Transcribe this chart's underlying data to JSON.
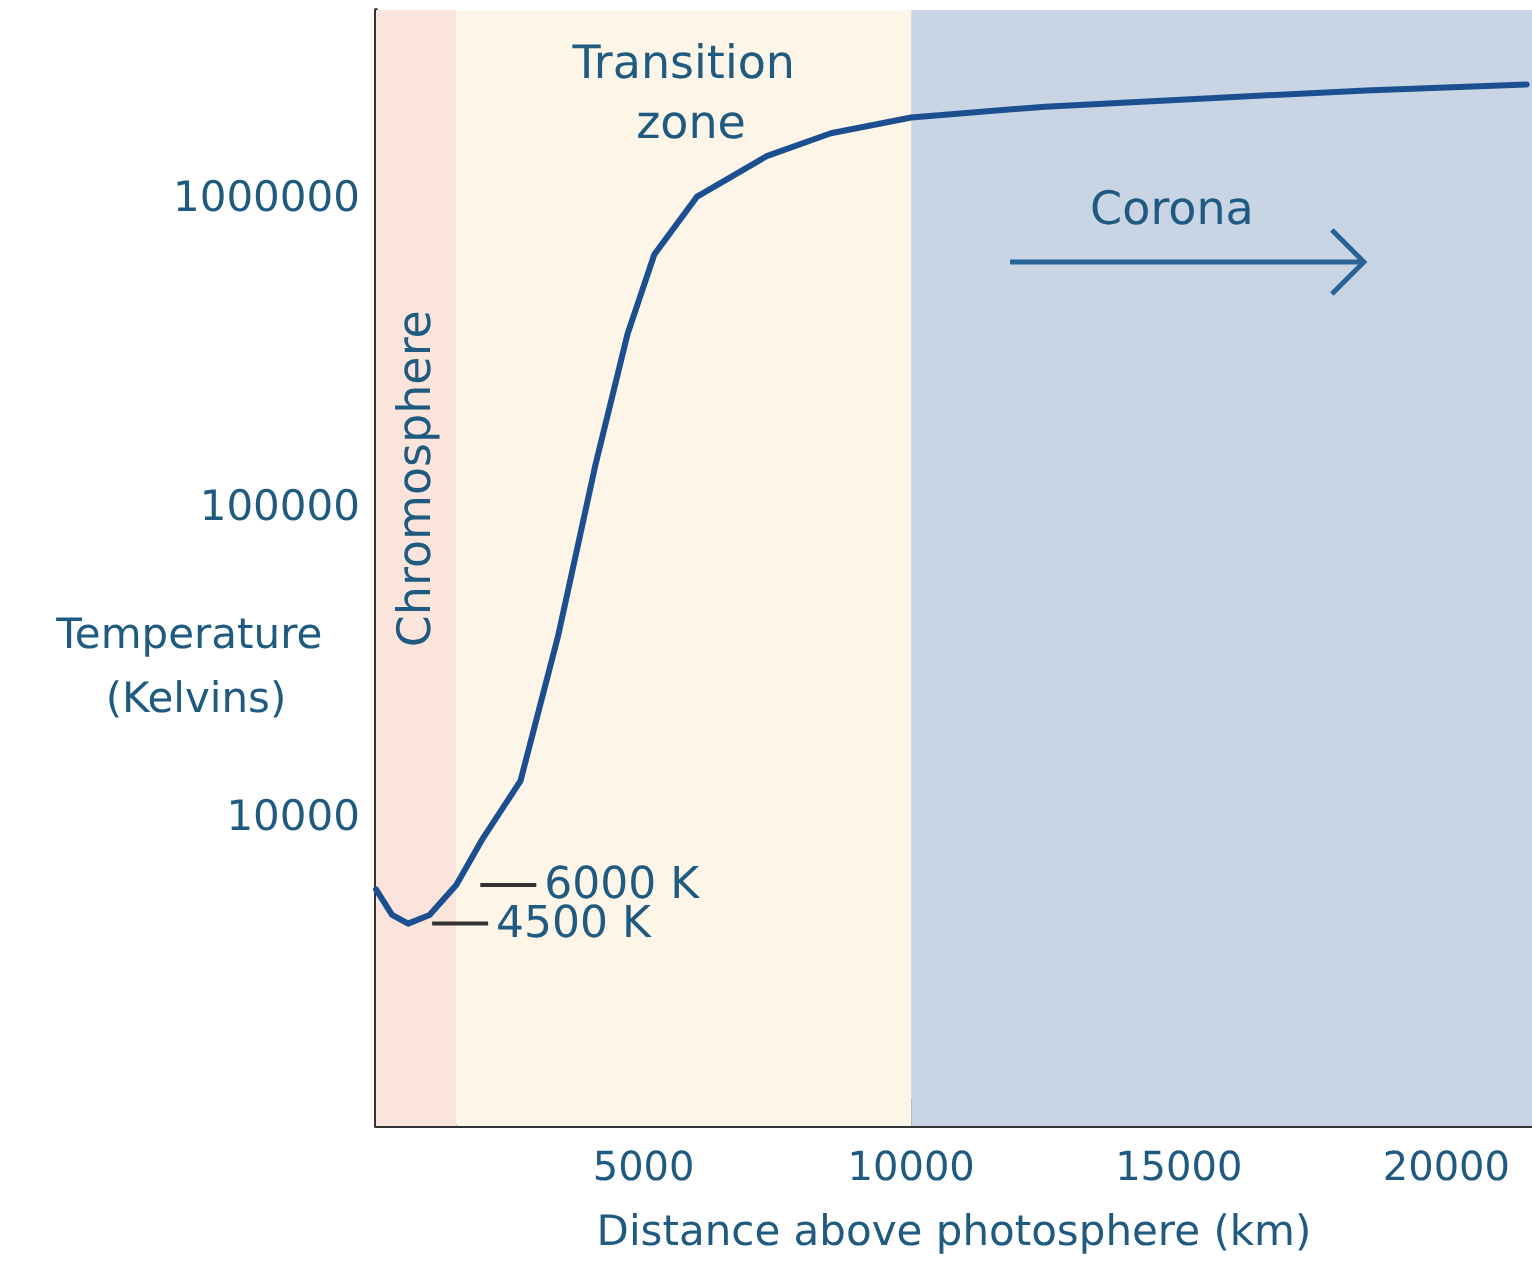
{
  "chart_data": {
    "type": "line",
    "xlabel": "Distance above photosphere (km)",
    "ylabel": "Temperature (Kelvins)",
    "x": [
      0,
      300,
      600,
      1000,
      1500,
      2000,
      2700,
      3400,
      4100,
      4700,
      5200,
      6000,
      7300,
      8500,
      10000,
      12500,
      15400,
      18500,
      21500
    ],
    "series": [
      {
        "color": "#1c4f8f",
        "values": [
          5800,
          4800,
          4500,
          4800,
          6000,
          8500,
          13000,
          38000,
          136000,
          360000,
          650000,
          1000000,
          1350000,
          1600000,
          1800000,
          1950000,
          2070000,
          2200000,
          2300000
        ]
      }
    ],
    "xlim": [
      0,
      21600
    ],
    "xticks": [
      5000,
      10000,
      15000,
      20000
    ],
    "ylim": [
      1000,
      4000000
    ],
    "yticks": [
      10000,
      100000,
      1000000
    ],
    "log": true,
    "marker": "none",
    "line_style": "solid",
    "bands": [
      {
        "axis": "x",
        "from": 0,
        "to": 1500,
        "label": "Chromosphere",
        "color": "#fbe4dc"
      },
      {
        "axis": "x",
        "from": 1500,
        "to": 10000,
        "label": "Transition zone",
        "color": "#fcf5e8"
      },
      {
        "axis": "x",
        "from": 10000,
        "to": 21600,
        "label": "Corona",
        "color": "#c9d5e4"
      }
    ],
    "annotations": [
      {
        "text": "6000 K",
        "x": 1500,
        "y": 6000
      },
      {
        "text": "4500 K",
        "x": 600,
        "y": 4500
      }
    ]
  }
}
